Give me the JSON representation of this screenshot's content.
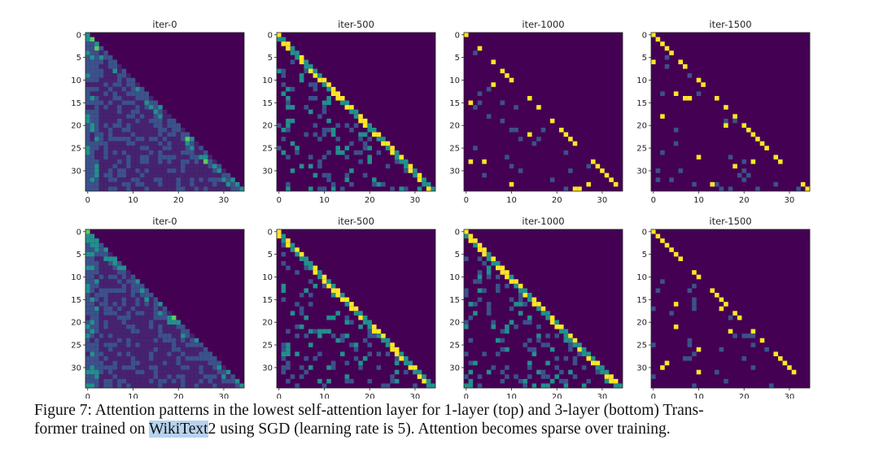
{
  "figure": {
    "rows": [
      {
        "label": "1-layer (top)",
        "panels": [
          {
            "title": "iter-0",
            "pattern": "dense"
          },
          {
            "title": "iter-500",
            "pattern": "medium"
          },
          {
            "title": "iter-1000",
            "pattern": "sparse"
          },
          {
            "title": "iter-1500",
            "pattern": "sparse"
          }
        ]
      },
      {
        "label": "3-layer (bottom)",
        "panels": [
          {
            "title": "iter-0",
            "pattern": "dense"
          },
          {
            "title": "iter-500",
            "pattern": "medium"
          },
          {
            "title": "iter-1000",
            "pattern": "medium"
          },
          {
            "title": "iter-1500",
            "pattern": "sparse"
          }
        ]
      }
    ],
    "matrix_size": 35,
    "x_ticks": [
      "0",
      "10",
      "20",
      "30"
    ],
    "y_ticks": [
      "0",
      "5",
      "10",
      "15",
      "20",
      "25",
      "30"
    ],
    "colormap": [
      "#440154",
      "#3b528b",
      "#21918c",
      "#5ec962",
      "#fde725"
    ]
  },
  "caption": {
    "line1_a": "Figure 7:  Attention patterns in the lowest self-attention layer for 1-layer (top) and 3-layer (bottom) Trans-",
    "line2_pre": "former trained on ",
    "highlight": "WikiText",
    "line2_post": "2 using SGD (learning rate is 5). Attention becomes sparse over training."
  }
}
